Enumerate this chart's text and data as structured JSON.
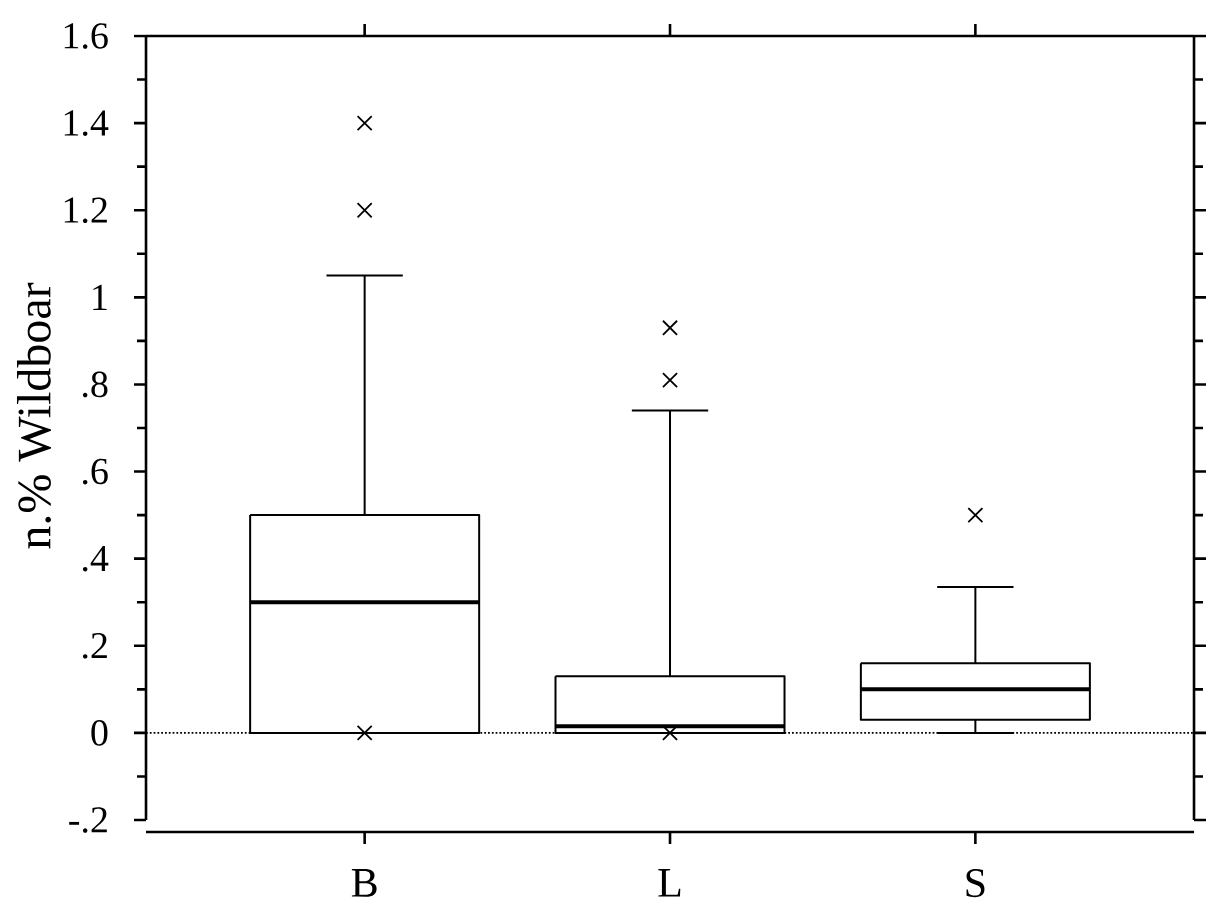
{
  "chart_data": {
    "type": "box",
    "ylabel": "n.% Wildboar",
    "categories": [
      "B",
      "L",
      "S"
    ],
    "color": "#000000",
    "marker": "cross",
    "boxes": [
      {
        "low": 0,
        "q1": 0,
        "median": 0.3,
        "q3": 0.5,
        "high": 1.05,
        "outliers": [
          1.4,
          1.2,
          0
        ]
      },
      {
        "low": 0,
        "q1": 0,
        "median": 0.015,
        "q3": 0.13,
        "high": 0.74,
        "outliers": [
          0.93,
          0.81,
          0
        ]
      },
      {
        "low": 0,
        "q1": 0.03,
        "median": 0.1,
        "q3": 0.16,
        "high": 0.335,
        "outliers": [
          0.5
        ]
      }
    ],
    "ylim": [
      -0.2,
      1.6
    ],
    "yticks": [
      {
        "value": -0.2,
        "label": "-.2"
      },
      {
        "value": -0.1,
        "label": null
      },
      0,
      {
        "value": 0.1,
        "label": null
      },
      {
        "value": 0.2,
        "label": ".2"
      },
      {
        "value": 0.3,
        "label": null
      },
      {
        "value": 0.4,
        "label": ".4"
      },
      {
        "value": 0.5,
        "label": null
      },
      {
        "value": 0.6,
        "label": ".6"
      },
      {
        "value": 0.7,
        "label": null
      },
      {
        "value": 0.8,
        "label": ".8"
      },
      {
        "value": 0.9,
        "label": null
      },
      1,
      {
        "value": 1.1,
        "label": null
      },
      1.2,
      {
        "value": 1.3,
        "label": null
      },
      1.4,
      {
        "value": 1.5,
        "label": null
      },
      1.6
    ],
    "ref_lines": [
      {
        "axis": "y",
        "value": 0,
        "line_style": "dotted",
        "color": "#000000"
      }
    ]
  }
}
